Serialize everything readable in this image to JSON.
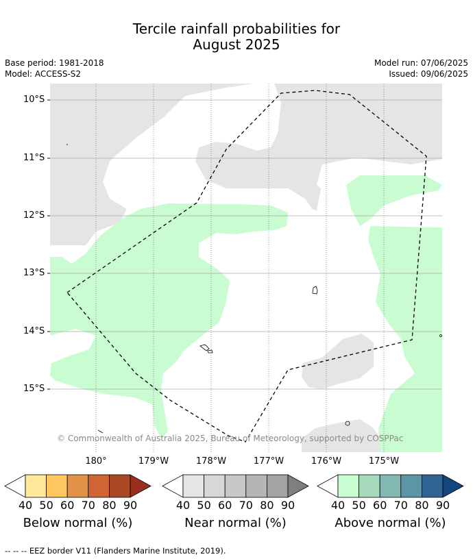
{
  "title_line1": "Tercile rainfall probabilities for",
  "title_line2": "August 2025",
  "base_period": "Base period: 1981-2018",
  "model": "Model: ACCESS-S2",
  "model_run": "Model run: 07/06/2025",
  "issued": "Issued: 09/06/2025",
  "lat_labels": [
    "10°S",
    "11°S",
    "12°S",
    "13°S",
    "14°S",
    "15°S"
  ],
  "lon_labels": [
    "180°",
    "179°W",
    "178°W",
    "177°W",
    "176°W",
    "175°W"
  ],
  "copyright": "© Commonwealth of Australia 2025, Bureau of Meteorology, supported by COSPPac",
  "legends": [
    {
      "title": "Below normal (%)",
      "values": [
        "40",
        "50",
        "60",
        "70",
        "80",
        "90"
      ],
      "colors": [
        "#ffffff",
        "#fee99c",
        "#fdc65e",
        "#e3924a",
        "#cf6534",
        "#aa4725",
        "#982e1b"
      ]
    },
    {
      "title": "Near normal (%)",
      "values": [
        "40",
        "50",
        "60",
        "70",
        "80",
        "90"
      ],
      "colors": [
        "#ffffff",
        "#e5e5e5",
        "#d7d7d7",
        "#c8c8c8",
        "#b5b5b5",
        "#a3a3a3",
        "#7f7f7f"
      ]
    },
    {
      "title": "Above normal (%)",
      "values": [
        "40",
        "50",
        "60",
        "70",
        "80",
        "90"
      ],
      "colors": [
        "#ffffff",
        "#c9fcd0",
        "#a7d9bd",
        "#83b9b3",
        "#5c95a3",
        "#316394",
        "#13457e"
      ]
    }
  ],
  "footnote": "--  --  -- EEZ border V11 (Flanders Marine Institute, 2019)."
}
